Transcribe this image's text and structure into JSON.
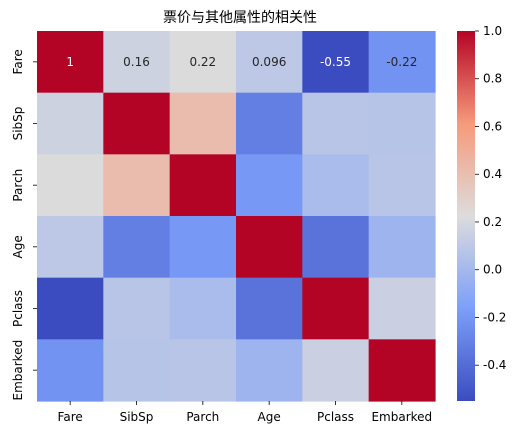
{
  "chart_data": {
    "type": "heatmap",
    "title": "票价与其他属性的相关性",
    "row_labels": [
      "Fare",
      "SibSp",
      "Parch",
      "Age",
      "Pclass",
      "Embarked"
    ],
    "col_labels": [
      "Fare",
      "SibSp",
      "Parch",
      "Age",
      "Pclass",
      "Embarked"
    ],
    "values": [
      [
        1.0,
        0.16,
        0.22,
        0.096,
        -0.55,
        -0.22
      ],
      [
        0.16,
        1.0,
        0.41,
        -0.31,
        0.08,
        0.07
      ],
      [
        0.22,
        0.41,
        1.0,
        -0.19,
        0.02,
        0.08
      ],
      [
        0.096,
        -0.31,
        -0.19,
        1.0,
        -0.37,
        -0.03
      ],
      [
        -0.55,
        0.08,
        0.02,
        -0.37,
        1.0,
        0.15
      ],
      [
        -0.22,
        0.07,
        0.08,
        -0.03,
        0.15,
        1.0
      ]
    ],
    "annotated_row": 0,
    "cell_annotations": [
      "1",
      "0.16",
      "0.22",
      "0.096",
      "-0.55",
      "-0.22"
    ],
    "colormap": "coolwarm",
    "vmin": -0.55,
    "vmax": 1.0,
    "colorbar_ticks": [
      "-0.4",
      "-0.2",
      "0.0",
      "0.2",
      "0.4",
      "0.6",
      "0.8",
      "1.0"
    ],
    "colorbar_tick_values": [
      -0.4,
      -0.2,
      0.0,
      0.2,
      0.4,
      0.6,
      0.8,
      1.0
    ],
    "grid": false,
    "legend": "colorbar-right"
  }
}
